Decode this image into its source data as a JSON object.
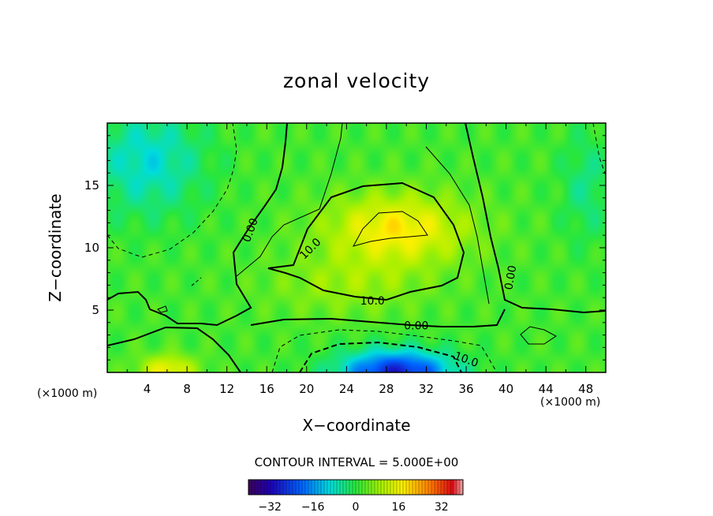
{
  "chart_data": {
    "type": "heatmap",
    "title": "zonal velocity",
    "xlabel": "X−coordinate",
    "ylabel": "Z−coordinate",
    "x_unit_left": "(×1000 m)",
    "x_unit_right": "(×1000 m)",
    "xlim": [
      0,
      50
    ],
    "ylim": [
      0,
      20
    ],
    "xticks": [
      4,
      8,
      12,
      16,
      20,
      24,
      28,
      32,
      36,
      40,
      44,
      48
    ],
    "xtick_labels": [
      "4",
      "8",
      "12",
      "16",
      "20",
      "24",
      "28",
      "32",
      "36",
      "40",
      "44",
      "48"
    ],
    "yticks": [
      5,
      10,
      15
    ],
    "ytick_labels": [
      "5",
      "10",
      "15"
    ],
    "contour_interval_text": "CONTOUR INTERVAL = 5.000E+00",
    "contour_labels": [
      {
        "text": "0.00",
        "x": 14.4,
        "y": 11.4
      },
      {
        "text": "10.0",
        "x": 20.4,
        "y": 9.9
      },
      {
        "text": "10.0",
        "x": 26.6,
        "y": 5.7
      },
      {
        "text": "0.00",
        "x": 31.0,
        "y": 3.7
      },
      {
        "text": "0.00",
        "x": 40.5,
        "y": 7.6
      },
      {
        "text": "10.0",
        "x": 36.0,
        "y": 1.0
      }
    ],
    "colorbar": {
      "range": [
        -40,
        40
      ],
      "ticks": [
        -32,
        -16,
        0,
        16,
        32
      ],
      "tick_labels": [
        "−32",
        "−16",
        "0",
        "16",
        "32"
      ]
    },
    "field_features": [
      {
        "kind": "jet_max",
        "x": 29.5,
        "z": 11.5,
        "value": 18
      },
      {
        "kind": "surface_jet_min",
        "x": 29,
        "z": 0.5,
        "value": -30
      },
      {
        "kind": "surface_max",
        "x": 6,
        "z": 0.5,
        "value": 15
      },
      {
        "kind": "upper_left_min",
        "x": 5,
        "z": 16,
        "value": -9
      },
      {
        "kind": "upper_right_min",
        "x": 47,
        "z": 15,
        "value": -5
      }
    ]
  }
}
